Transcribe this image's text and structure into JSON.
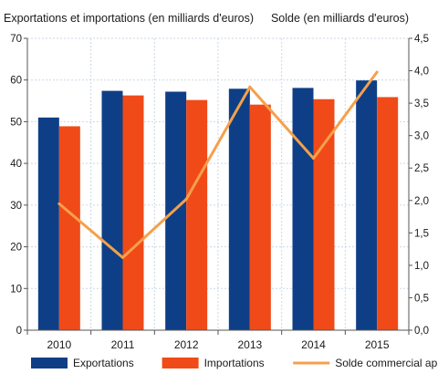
{
  "chart_data": {
    "type": "bar",
    "left_axis_title": "Exportations et importations (en milliards d'euros)",
    "right_axis_title": "Solde (en milliards d'euros)",
    "categories": [
      "2010",
      "2011",
      "2012",
      "2013",
      "2014",
      "2015"
    ],
    "series": [
      {
        "name": "Exportations",
        "type": "bar",
        "axis": "left",
        "color": "#0e3f86",
        "values": [
          51.0,
          57.4,
          57.2,
          57.9,
          58.1,
          59.9
        ]
      },
      {
        "name": "Importations",
        "type": "bar",
        "axis": "left",
        "color": "#f04a18",
        "values": [
          48.9,
          56.3,
          55.2,
          54.1,
          55.4,
          55.9
        ]
      },
      {
        "name": "Solde commercial apparent",
        "type": "line",
        "axis": "right",
        "color": "#f5a04a",
        "values": [
          1.95,
          1.12,
          2.02,
          3.75,
          2.65,
          3.98
        ]
      }
    ],
    "left_axis": {
      "min": 0,
      "max": 70,
      "ticks": [
        "0",
        "10",
        "20",
        "30",
        "40",
        "50",
        "60",
        "70"
      ]
    },
    "right_axis": {
      "min": 0,
      "max": 4.5,
      "ticks": [
        "0,0",
        "0,5",
        "1,0",
        "1,5",
        "2,0",
        "2,5",
        "3,0",
        "3,5",
        "4,0",
        "4,5"
      ]
    },
    "grid": true,
    "legend_position": "bottom"
  }
}
